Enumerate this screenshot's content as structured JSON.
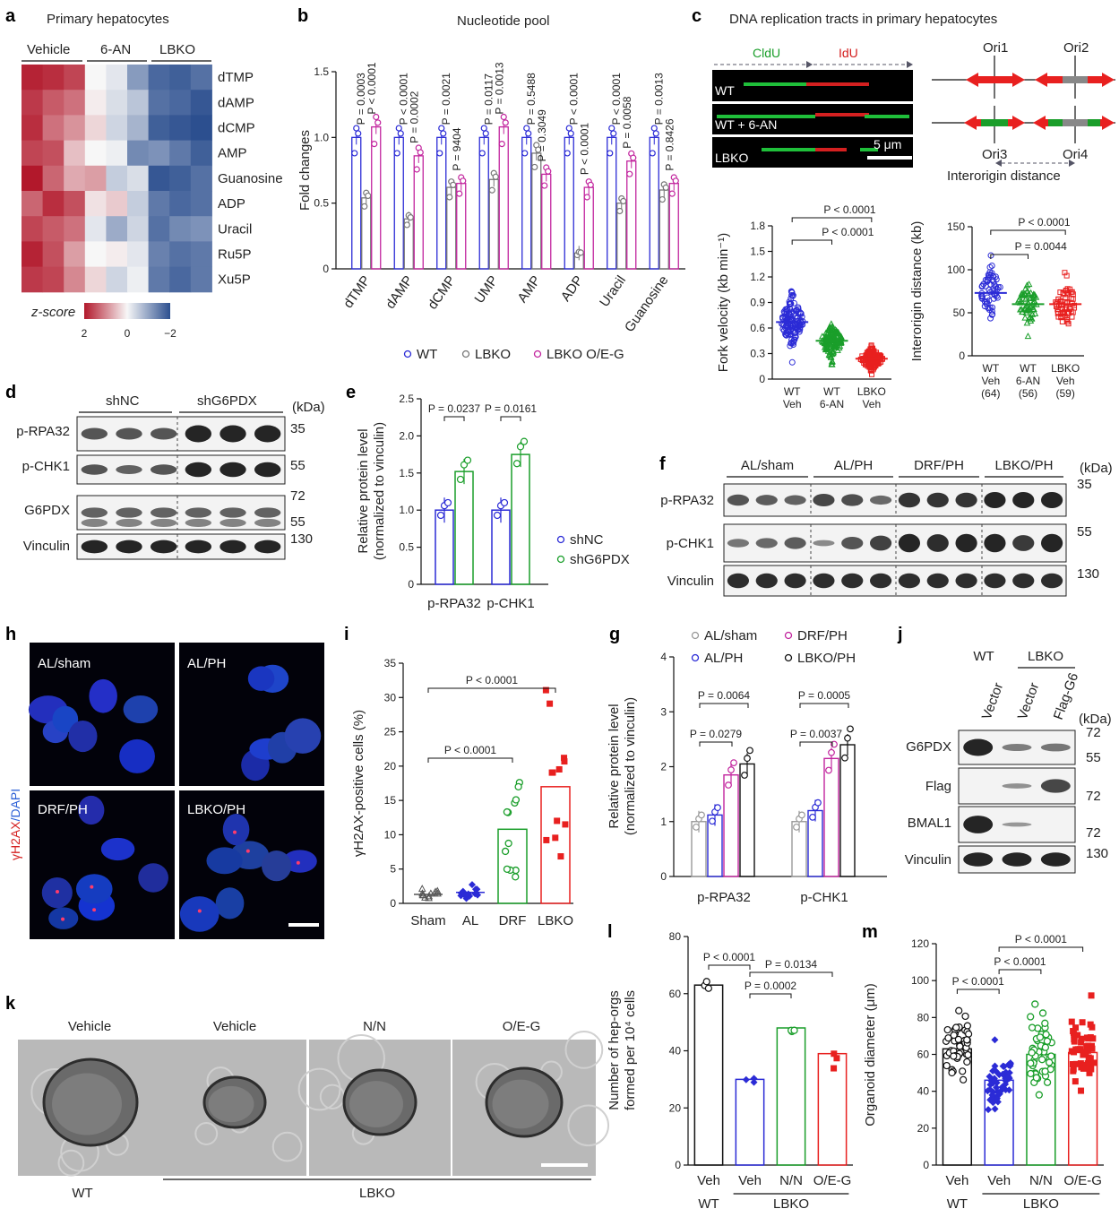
{
  "panels": {
    "a": {
      "letter": "a",
      "title": "Primary hepatocytes",
      "groups": [
        "Vehicle",
        "6-AN",
        "LBKO"
      ],
      "rows": [
        "dTMP",
        "dAMP",
        "dCMP",
        "AMP",
        "Guanosine",
        "ADP",
        "Uracil",
        "Ru5P",
        "Xu5P"
      ],
      "legend_title": "z-score",
      "legend_ticks": [
        "2",
        "0",
        "−2"
      ],
      "colors": {
        "high": "#b2182b",
        "mid": "#f7f7f7",
        "low": "#2c4f8f"
      },
      "matrix": [
        [
          1.9,
          1.8,
          1.6,
          0.0,
          -0.2,
          -1.1,
          -1.7,
          -1.8,
          -1.6
        ],
        [
          1.7,
          1.4,
          1.2,
          0.1,
          -0.3,
          -0.6,
          -1.6,
          -1.7,
          -1.9
        ],
        [
          1.8,
          1.2,
          0.9,
          0.3,
          -0.4,
          -0.8,
          -1.8,
          -1.9,
          -2.0
        ],
        [
          1.6,
          1.5,
          0.5,
          0.0,
          -0.1,
          -1.3,
          -1.2,
          -1.5,
          -1.8
        ],
        [
          2.0,
          1.3,
          0.7,
          0.8,
          -0.5,
          -0.3,
          -1.9,
          -1.8,
          -1.6
        ],
        [
          1.3,
          1.8,
          1.5,
          0.2,
          0.4,
          -0.5,
          -1.5,
          -1.7,
          -1.6
        ],
        [
          1.6,
          1.4,
          1.2,
          -0.2,
          -0.9,
          -0.4,
          -1.6,
          -1.3,
          -1.2
        ],
        [
          1.9,
          1.5,
          0.8,
          0.0,
          0.1,
          -0.2,
          -1.4,
          -1.6,
          -1.5
        ],
        [
          1.7,
          1.6,
          1.0,
          0.3,
          -0.4,
          -0.1,
          -1.5,
          -1.7,
          -1.5
        ]
      ]
    },
    "b": {
      "letter": "b",
      "title": "Nucleotide pool",
      "chart_data": {
        "type": "bar",
        "title": "Nucleotide pool",
        "ylabel": "Fold changes",
        "ylim": [
          0,
          1.5
        ],
        "yticks": [
          "0",
          "0.5",
          "1.0",
          "1.5"
        ],
        "categories": [
          "dTMP",
          "dAMP",
          "dCMP",
          "UMP",
          "AMP",
          "ADP",
          "Uracil",
          "Guanosine"
        ],
        "series": [
          {
            "name": "WT",
            "color": "#2b2bd6",
            "values": [
              1.0,
              1.0,
              1.0,
              1.0,
              1.0,
              1.0,
              1.0,
              1.0
            ]
          },
          {
            "name": "LBKO",
            "color": "#777777",
            "values": [
              0.54,
              0.38,
              0.62,
              0.68,
              0.88,
              0.12,
              0.5,
              0.6
            ]
          },
          {
            "name": "LBKO O/E-G",
            "color": "#c2259e",
            "values": [
              1.08,
              0.86,
              0.65,
              1.08,
              0.72,
              0.62,
              0.82,
              0.65
            ]
          }
        ],
        "pvalues": [
          [
            "P = 0.0003",
            "P < 0.0001"
          ],
          [
            "P < 0.0001",
            "P = 0.0002"
          ],
          [
            "P = 0.0021",
            "P = 9404"
          ],
          [
            "P = 0.0117",
            "P = 0.0013"
          ],
          [
            "P = 0.5488",
            "P = 0.3049"
          ],
          [
            "P < 0.0001",
            "P < 0.0001"
          ],
          [
            "P < 0.0001",
            "P = 0.0058"
          ],
          [
            "P = 0.0013",
            "P = 0.8426"
          ]
        ]
      }
    },
    "c": {
      "letter": "c",
      "title": "DNA replication tracts in primary hepatocytes",
      "cldu": "CldU",
      "idu": "IdU",
      "rows": [
        "WT",
        "WT + 6-AN",
        "LBKO"
      ],
      "scale": "5 μm",
      "origins": [
        "Ori1",
        "Ori2",
        "Ori3",
        "Ori4"
      ],
      "interorigin_label": "Interorigin distance",
      "fork_chart": {
        "type": "scatter",
        "ylabel": "Fork velocity (kb min⁻¹)",
        "ylim": [
          0,
          1.8
        ],
        "yticks": [
          "0",
          "0.3",
          "0.6",
          "0.9",
          "1.2",
          "1.5",
          "1.8"
        ],
        "categories": [
          [
            "WT",
            "Veh"
          ],
          [
            "WT",
            "6-AN"
          ],
          [
            "LBKO",
            "Veh"
          ]
        ],
        "means": [
          0.67,
          0.45,
          0.24
        ],
        "colors": [
          "#2b2bd6",
          "#1a9e2a",
          "#e8201f"
        ],
        "pvalues": [
          "P < 0.0001",
          "P < 0.0001"
        ]
      },
      "inter_chart": {
        "type": "scatter",
        "ylabel": "Interorigin distance (kb)",
        "ylim": [
          0,
          150
        ],
        "yticks": [
          "0",
          "50",
          "100",
          "150"
        ],
        "categories": [
          [
            "WT",
            "Veh",
            "(64)"
          ],
          [
            "WT",
            "6-AN",
            "(56)"
          ],
          [
            "LBKO",
            "Veh",
            "(59)"
          ]
        ],
        "means": [
          73,
          60,
          60
        ],
        "colors": [
          "#2b2bd6",
          "#1a9e2a",
          "#e8201f"
        ],
        "pvalues": [
          "P < 0.0001",
          "P = 0.0044"
        ]
      }
    },
    "d": {
      "letter": "d",
      "groups": [
        "shNC",
        "shG6PDX"
      ],
      "rows": [
        "p-RPA32",
        "p-CHK1",
        "G6PDX",
        "Vinculin"
      ],
      "kda": "(kDa)",
      "markers": [
        "35",
        "55",
        "72",
        "55",
        "130"
      ]
    },
    "e": {
      "letter": "e",
      "chart_data": {
        "type": "bar",
        "ylabel": "Relative protein level (normalized to vinculin)",
        "ylim": [
          0,
          2.5
        ],
        "yticks": [
          "0",
          "0.5",
          "1.0",
          "1.5",
          "2.0",
          "2.5"
        ],
        "categories": [
          "p-RPA32",
          "p-CHK1"
        ],
        "series": [
          {
            "name": "shNC",
            "color": "#2b2bd6",
            "values": [
              1.0,
              1.0
            ]
          },
          {
            "name": "shG6PDX",
            "color": "#1a9e2a",
            "values": [
              1.52,
              1.75
            ]
          }
        ],
        "pvalues": [
          "P = 0.0237",
          "P = 0.0161"
        ]
      }
    },
    "f": {
      "letter": "f",
      "groups": [
        "AL/sham",
        "AL/PH",
        "DRF/PH",
        "LBKO/PH"
      ],
      "rows": [
        "p-RPA32",
        "p-CHK1",
        "Vinculin"
      ],
      "kda": "(kDa)",
      "markers": [
        "35",
        "55",
        "130"
      ]
    },
    "g": {
      "letter": "g",
      "chart_data": {
        "type": "bar",
        "ylabel": "Relative protein level (normalized to vinculin)",
        "ylim": [
          0,
          4
        ],
        "yticks": [
          "0",
          "1",
          "2",
          "3",
          "4"
        ],
        "categories": [
          "p-RPA32",
          "p-CHK1"
        ],
        "series": [
          {
            "name": "AL/sham",
            "color": "#999999",
            "values": [
              1.0,
              1.0
            ]
          },
          {
            "name": "AL/PH",
            "color": "#2b2bd6",
            "values": [
              1.12,
              1.2
            ]
          },
          {
            "name": "DRF/PH",
            "color": "#c2259e",
            "values": [
              1.85,
              2.15
            ]
          },
          {
            "name": "LBKO/PH",
            "color": "#111111",
            "values": [
              2.05,
              2.4
            ]
          }
        ],
        "pvalues": [
          [
            "P = 0.0064",
            "P = 0.0279"
          ],
          [
            "P = 0.0005",
            "P = 0.0037"
          ]
        ]
      }
    },
    "h": {
      "letter": "h",
      "labels": [
        "AL/sham",
        "AL/PH",
        "DRF/PH",
        "LBKO/PH"
      ],
      "side_red": "γH2AX",
      "side_blue": "/DAPI"
    },
    "i": {
      "letter": "i",
      "chart_data": {
        "type": "bar",
        "ylabel": "γH2AX-positive cells (%)",
        "ylim": [
          0,
          35
        ],
        "yticks": [
          "0",
          "5",
          "10",
          "15",
          "20",
          "25",
          "30",
          "35"
        ],
        "categories": [
          "Sham",
          "AL",
          "DRF",
          "LBKO"
        ],
        "values": [
          1.3,
          1.6,
          10.8,
          17.0
        ],
        "colors": [
          "#555555",
          "#2b2bd6",
          "#1a9e2a",
          "#e8201f"
        ],
        "pvalues": [
          "P < 0.0001",
          "P < 0.0001"
        ]
      }
    },
    "j": {
      "letter": "j",
      "groups": [
        "WT",
        "LBKO"
      ],
      "lanes": [
        "Vector",
        "Vector",
        "Flag-G6"
      ],
      "rows": [
        "G6PDX",
        "Flag",
        "BMAL1",
        "Vinculin"
      ],
      "kda": "(kDa)",
      "markers": [
        "72",
        "55",
        "72",
        "72",
        "130"
      ]
    },
    "k": {
      "letter": "k",
      "labels": [
        "Vehicle",
        "Vehicle",
        "N/N",
        "O/E-G"
      ],
      "wt": "WT",
      "lbko": "LBKO"
    },
    "l": {
      "letter": "l",
      "chart_data": {
        "type": "bar",
        "ylabel": "Number of hep-orgs formed per 10⁴ cells",
        "ylim": [
          0,
          80
        ],
        "yticks": [
          "0",
          "20",
          "40",
          "60",
          "80"
        ],
        "categories": [
          "Veh",
          "Veh",
          "N/N",
          "O/E-G"
        ],
        "values": [
          63,
          30,
          48,
          39
        ],
        "colors": [
          "#111111",
          "#2b2bd6",
          "#1a9e2a",
          "#e8201f"
        ],
        "pvalues": [
          "P < 0.0001",
          "P = 0.0134",
          "P = 0.0002"
        ],
        "wt": "WT",
        "lbko": "LBKO"
      }
    },
    "m": {
      "letter": "m",
      "chart_data": {
        "type": "bar",
        "ylabel": "Organoid diameter (μm)",
        "ylim": [
          0,
          120
        ],
        "yticks": [
          "0",
          "20",
          "40",
          "60",
          "80",
          "100",
          "120"
        ],
        "categories": [
          "Veh",
          "Veh",
          "N/N",
          "O/E-G"
        ],
        "values": [
          63,
          46,
          60,
          61
        ],
        "colors": [
          "#111111",
          "#2b2bd6",
          "#1a9e2a",
          "#e8201f"
        ],
        "pvalues": [
          "P < 0.0001",
          "P < 0.0001",
          "P < 0.0001"
        ],
        "wt": "WT",
        "lbko": "LBKO"
      }
    }
  }
}
